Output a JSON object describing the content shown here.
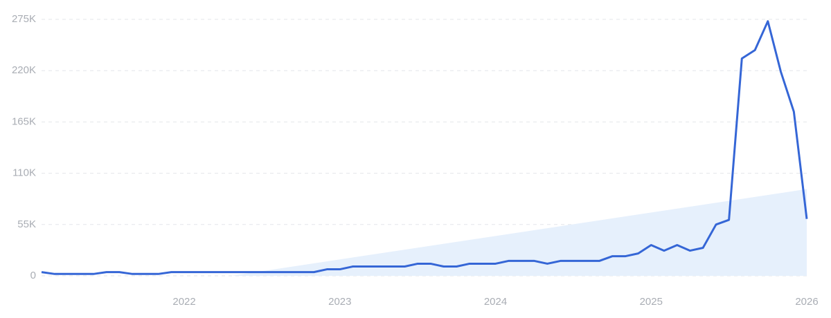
{
  "chart_data": {
    "type": "line",
    "x": [
      2021.083,
      2021.167,
      2021.25,
      2021.333,
      2021.417,
      2021.5,
      2021.583,
      2021.667,
      2021.75,
      2021.833,
      2021.917,
      2022.0,
      2022.083,
      2022.167,
      2022.25,
      2022.333,
      2022.417,
      2022.5,
      2022.583,
      2022.667,
      2022.75,
      2022.833,
      2022.917,
      2023.0,
      2023.083,
      2023.167,
      2023.25,
      2023.333,
      2023.417,
      2023.5,
      2023.583,
      2023.667,
      2023.75,
      2023.833,
      2023.917,
      2024.0,
      2024.083,
      2024.167,
      2024.25,
      2024.333,
      2024.417,
      2024.5,
      2024.583,
      2024.667,
      2024.75,
      2024.833,
      2024.917,
      2025.0,
      2025.083,
      2025.167,
      2025.25,
      2025.333,
      2025.417,
      2025.5,
      2025.583,
      2025.667,
      2025.75,
      2025.833,
      2025.917,
      2026.0
    ],
    "series": [
      {
        "color": "#3566d6",
        "values": [
          4000,
          2000,
          2000,
          2000,
          2000,
          4000,
          4000,
          2000,
          2000,
          2000,
          4000,
          4000,
          4000,
          4000,
          4000,
          4000,
          4000,
          4000,
          4000,
          4000,
          4000,
          4000,
          7000,
          7000,
          10000,
          10000,
          10000,
          10000,
          10000,
          13000,
          13000,
          10000,
          10000,
          13000,
          13000,
          13000,
          16000,
          16000,
          16000,
          13000,
          16000,
          16000,
          16000,
          16000,
          21000,
          21000,
          24000,
          33000,
          27000,
          33000,
          27000,
          30000,
          55000,
          60000,
          233000,
          242000,
          273000,
          219000,
          176000,
          61000
        ]
      }
    ],
    "trend": {
      "color": "#e6f0fc",
      "x": [
        2022.3,
        2026.0
      ],
      "values": [
        0,
        93000
      ]
    },
    "xlim": [
      2021.083,
      2026.0
    ],
    "xticks": [
      2022,
      2023,
      2024,
      2025,
      2026
    ],
    "ylim": [
      0,
      275000
    ],
    "yticks": [
      0,
      {
        "value": 55000,
        "label": "55K"
      },
      {
        "value": 110000,
        "label": "110K"
      },
      {
        "value": 165000,
        "label": "165K"
      },
      {
        "value": 220000,
        "label": "220K"
      },
      {
        "value": 275000,
        "label": "275K"
      }
    ],
    "grid": true
  }
}
